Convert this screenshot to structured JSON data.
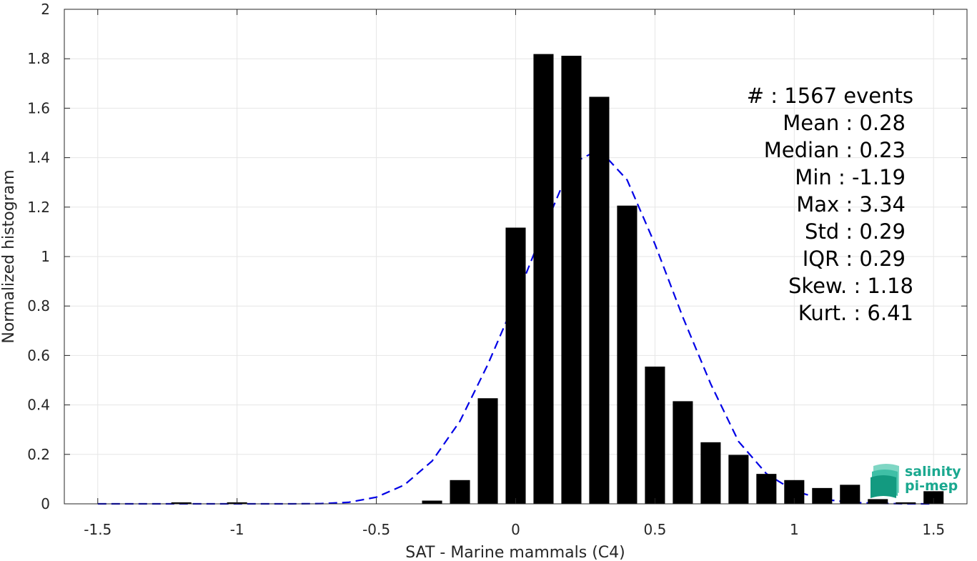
{
  "chart_data": {
    "type": "bar",
    "xlabel": "SAT - Marine mammals (C4)",
    "ylabel": "Normalized histogram",
    "xlim": [
      -1.62,
      1.62
    ],
    "ylim": [
      0,
      2
    ],
    "xticks": [
      -1.5,
      -1,
      -0.5,
      0,
      0.5,
      1,
      1.5
    ],
    "xtick_labels": [
      "-1.5",
      "-1",
      "-0.5",
      "0",
      "0.5",
      "1",
      "1.5"
    ],
    "yticks": [
      0,
      0.2,
      0.4,
      0.6,
      0.8,
      1,
      1.2,
      1.4,
      1.6,
      1.8,
      2
    ],
    "ytick_labels": [
      "0",
      "0.2",
      "0.4",
      "0.6",
      "0.8",
      "1",
      "1.2",
      "1.4",
      "1.6",
      "1.8",
      "2"
    ],
    "grid": true,
    "bar_color": "#000000",
    "bin_width": 0.1,
    "histogram": {
      "x": [
        -1.5,
        -1.4,
        -1.3,
        -1.2,
        -1.1,
        -1.0,
        -0.9,
        -0.8,
        -0.7,
        -0.6,
        -0.5,
        -0.4,
        -0.3,
        -0.2,
        -0.1,
        0.0,
        0.1,
        0.2,
        0.3,
        0.4,
        0.5,
        0.6,
        0.7,
        0.8,
        0.9,
        1.0,
        1.1,
        1.2,
        1.3,
        1.4,
        1.5
      ],
      "values": [
        0,
        0,
        0,
        0.006,
        0,
        0.006,
        0,
        0,
        0,
        0,
        0,
        0,
        0.013,
        0.096,
        0.427,
        1.117,
        1.819,
        1.812,
        1.646,
        1.206,
        0.555,
        0.415,
        0.249,
        0.198,
        0.121,
        0.096,
        0.064,
        0.077,
        0.019,
        0.006,
        0.051
      ]
    },
    "gaussian_fit": {
      "style": "dashed",
      "color": "#0000e6",
      "x": [
        -1.5,
        -1.4,
        -1.3,
        -1.2,
        -1.1,
        -1.0,
        -0.9,
        -0.8,
        -0.7,
        -0.6,
        -0.5,
        -0.4,
        -0.3,
        -0.2,
        -0.1,
        0.0,
        0.1,
        0.2,
        0.3,
        0.4,
        0.5,
        0.6,
        0.7,
        0.8,
        0.9,
        1.0,
        1.1,
        1.2,
        1.3,
        1.4,
        1.5
      ],
      "values": [
        0,
        0,
        0,
        0,
        0,
        0,
        0,
        0,
        0.001,
        0.006,
        0.027,
        0.076,
        0.173,
        0.334,
        0.563,
        0.825,
        1.108,
        1.375,
        1.433,
        1.31,
        1.05,
        0.755,
        0.485,
        0.252,
        0.122,
        0.052,
        0.019,
        0.006,
        0.002,
        0,
        0
      ]
    },
    "annotations": [
      "#  : 1567 events",
      "Mean : 0.28",
      "Median : 0.23",
      "Min : -1.19",
      "Max : 3.34",
      "Std : 0.29",
      "IQR : 0.29",
      "Skew. : 1.18",
      "Kurt. : 6.41"
    ]
  },
  "logo": {
    "line1": "salinity",
    "line2": "pi-mep",
    "color": "#1aa88f"
  }
}
